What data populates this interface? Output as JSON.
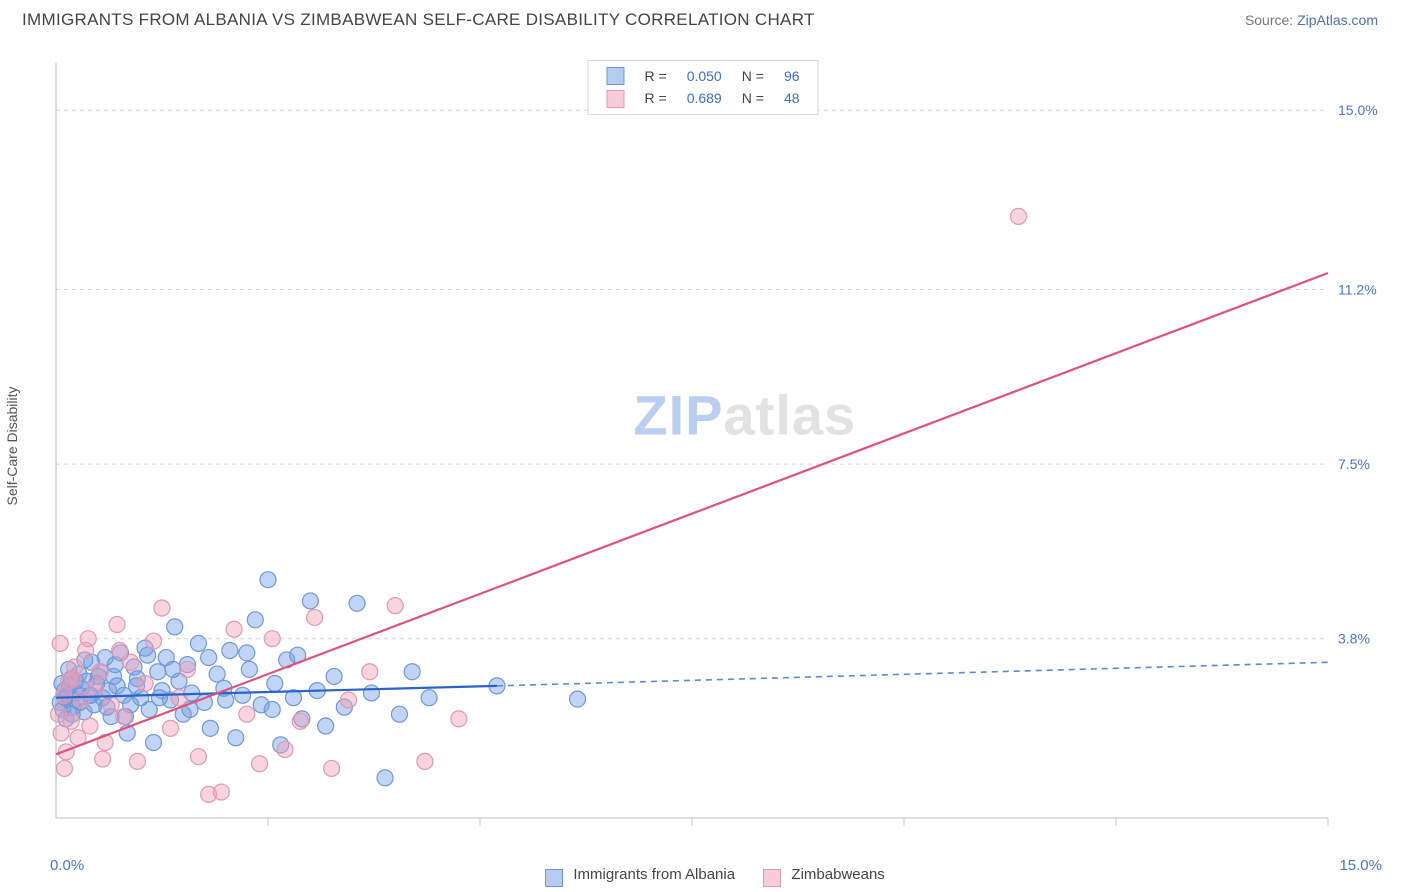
{
  "title": "IMMIGRANTS FROM ALBANIA VS ZIMBABWEAN SELF-CARE DISABILITY CORRELATION CHART",
  "source_label": "Source: ",
  "source_site": "ZipAtlas.com",
  "ylabel": "Self-Care Disability",
  "watermark_a": "ZIP",
  "watermark_b": "atlas",
  "chart": {
    "type": "scatter",
    "background_color": "#ffffff",
    "grid_color": "#d6d6d6",
    "axis_color": "#d0d0d0",
    "xlim": [
      0,
      15
    ],
    "ylim": [
      0,
      16
    ],
    "xtick_positions": [
      2.5,
      5.0,
      7.5,
      10.0,
      12.5,
      15.0
    ],
    "y_gridlines": [
      {
        "y": 3.8,
        "label": "3.8%"
      },
      {
        "y": 7.5,
        "label": "7.5%"
      },
      {
        "y": 11.2,
        "label": "11.2%"
      },
      {
        "y": 15.0,
        "label": "15.0%"
      }
    ],
    "x_corner_min_label": "0.0%",
    "x_corner_max_label": "15.0%",
    "marker_radius": 8,
    "marker_opacity": 0.45,
    "series": [
      {
        "name": "Immigrants from Albania",
        "color_fill": "#7aa1e3",
        "color_stroke": "#6f98da",
        "R": "0.050",
        "N": "96",
        "trend": {
          "x0": 0,
          "y0": 2.55,
          "x1": 5.2,
          "y1": 2.8,
          "x_ext": 15,
          "y_ext": 3.3,
          "dashed_after_x": 5.2,
          "color": "#2a63c9"
        },
        "points": [
          [
            0.05,
            2.45
          ],
          [
            0.08,
            2.3
          ],
          [
            0.1,
            2.7
          ],
          [
            0.12,
            2.1
          ],
          [
            0.14,
            2.6
          ],
          [
            0.16,
            2.8
          ],
          [
            0.18,
            2.95
          ],
          [
            0.2,
            2.35
          ],
          [
            0.22,
            2.65
          ],
          [
            0.24,
            2.5
          ],
          [
            0.27,
            3.05
          ],
          [
            0.3,
            2.75
          ],
          [
            0.33,
            2.25
          ],
          [
            0.36,
            2.9
          ],
          [
            0.4,
            2.6
          ],
          [
            0.42,
            3.3
          ],
          [
            0.45,
            2.4
          ],
          [
            0.48,
            2.85
          ],
          [
            0.52,
            3.1
          ],
          [
            0.55,
            2.55
          ],
          [
            0.58,
            3.4
          ],
          [
            0.62,
            2.7
          ],
          [
            0.65,
            2.15
          ],
          [
            0.68,
            3.0
          ],
          [
            0.72,
            2.8
          ],
          [
            0.76,
            3.5
          ],
          [
            0.8,
            2.6
          ],
          [
            0.84,
            1.8
          ],
          [
            0.88,
            2.4
          ],
          [
            0.92,
            3.2
          ],
          [
            0.96,
            2.95
          ],
          [
            1.0,
            2.55
          ],
          [
            1.05,
            3.6
          ],
          [
            1.1,
            2.3
          ],
          [
            1.15,
            1.6
          ],
          [
            1.2,
            3.1
          ],
          [
            1.25,
            2.7
          ],
          [
            1.3,
            3.4
          ],
          [
            1.35,
            2.5
          ],
          [
            1.4,
            4.05
          ],
          [
            1.45,
            2.9
          ],
          [
            1.5,
            2.2
          ],
          [
            1.55,
            3.25
          ],
          [
            1.6,
            2.65
          ],
          [
            1.68,
            3.7
          ],
          [
            1.75,
            2.45
          ],
          [
            1.82,
            1.9
          ],
          [
            1.9,
            3.05
          ],
          [
            1.98,
            2.75
          ],
          [
            2.05,
            3.55
          ],
          [
            2.12,
            1.7
          ],
          [
            2.2,
            2.6
          ],
          [
            2.28,
            3.15
          ],
          [
            2.35,
            4.2
          ],
          [
            2.42,
            2.4
          ],
          [
            2.5,
            5.05
          ],
          [
            2.58,
            2.85
          ],
          [
            2.65,
            1.55
          ],
          [
            2.72,
            3.35
          ],
          [
            2.8,
            2.55
          ],
          [
            2.9,
            2.1
          ],
          [
            3.0,
            4.6
          ],
          [
            3.08,
            2.7
          ],
          [
            3.18,
            1.95
          ],
          [
            3.28,
            3.0
          ],
          [
            3.4,
            2.35
          ],
          [
            3.55,
            4.55
          ],
          [
            3.72,
            2.65
          ],
          [
            3.88,
            0.85
          ],
          [
            4.05,
            2.2
          ],
          [
            4.2,
            3.1
          ],
          [
            4.4,
            2.55
          ],
          [
            5.2,
            2.8
          ],
          [
            6.15,
            2.52
          ],
          [
            0.07,
            2.85
          ],
          [
            0.11,
            2.55
          ],
          [
            0.15,
            3.15
          ],
          [
            0.19,
            2.2
          ],
          [
            0.23,
            2.9
          ],
          [
            0.28,
            2.45
          ],
          [
            0.34,
            3.35
          ],
          [
            0.41,
            2.6
          ],
          [
            0.5,
            3.0
          ],
          [
            0.6,
            2.35
          ],
          [
            0.7,
            3.25
          ],
          [
            0.82,
            2.15
          ],
          [
            0.95,
            2.8
          ],
          [
            1.08,
            3.45
          ],
          [
            1.22,
            2.55
          ],
          [
            1.38,
            3.15
          ],
          [
            1.58,
            2.3
          ],
          [
            1.8,
            3.4
          ],
          [
            2.0,
            2.5
          ],
          [
            2.25,
            3.5
          ],
          [
            2.55,
            2.3
          ],
          [
            2.85,
            3.45
          ]
        ]
      },
      {
        "name": "Zimbabweans",
        "color_fill": "#f0a2ba",
        "color_stroke": "#e09ab2",
        "R": "0.689",
        "N": "48",
        "trend": {
          "x0": 0,
          "y0": 1.35,
          "x1": 15,
          "y1": 11.55,
          "color": "#e0527a"
        },
        "points": [
          [
            0.03,
            2.2
          ],
          [
            0.06,
            1.8
          ],
          [
            0.09,
            2.6
          ],
          [
            0.12,
            1.4
          ],
          [
            0.15,
            2.9
          ],
          [
            0.18,
            2.05
          ],
          [
            0.22,
            3.2
          ],
          [
            0.26,
            1.7
          ],
          [
            0.3,
            2.5
          ],
          [
            0.35,
            3.55
          ],
          [
            0.4,
            1.95
          ],
          [
            0.46,
            2.75
          ],
          [
            0.52,
            3.1
          ],
          [
            0.58,
            1.6
          ],
          [
            0.65,
            2.4
          ],
          [
            0.72,
            4.1
          ],
          [
            0.8,
            2.15
          ],
          [
            0.88,
            3.3
          ],
          [
            0.96,
            1.2
          ],
          [
            1.05,
            2.85
          ],
          [
            1.15,
            3.75
          ],
          [
            1.25,
            4.45
          ],
          [
            1.35,
            1.9
          ],
          [
            1.45,
            2.55
          ],
          [
            1.55,
            3.15
          ],
          [
            1.68,
            1.3
          ],
          [
            1.8,
            0.5
          ],
          [
            1.95,
            0.55
          ],
          [
            2.1,
            4.0
          ],
          [
            2.25,
            2.2
          ],
          [
            2.4,
            1.15
          ],
          [
            2.55,
            3.8
          ],
          [
            2.7,
            1.45
          ],
          [
            2.88,
            2.05
          ],
          [
            3.05,
            4.25
          ],
          [
            3.25,
            1.05
          ],
          [
            3.45,
            2.5
          ],
          [
            3.7,
            3.1
          ],
          [
            4.0,
            4.5
          ],
          [
            4.35,
            1.2
          ],
          [
            4.75,
            2.1
          ],
          [
            11.35,
            12.75
          ],
          [
            0.05,
            3.7
          ],
          [
            0.1,
            1.05
          ],
          [
            0.2,
            2.95
          ],
          [
            0.38,
            3.8
          ],
          [
            0.55,
            1.25
          ],
          [
            0.75,
            3.55
          ]
        ]
      }
    ]
  },
  "legend_top": {
    "R_label": "R",
    "N_label": "N",
    "eq": "="
  },
  "legend_bottom": {
    "series1": "Immigrants from Albania",
    "series2": "Zimbabweans"
  }
}
